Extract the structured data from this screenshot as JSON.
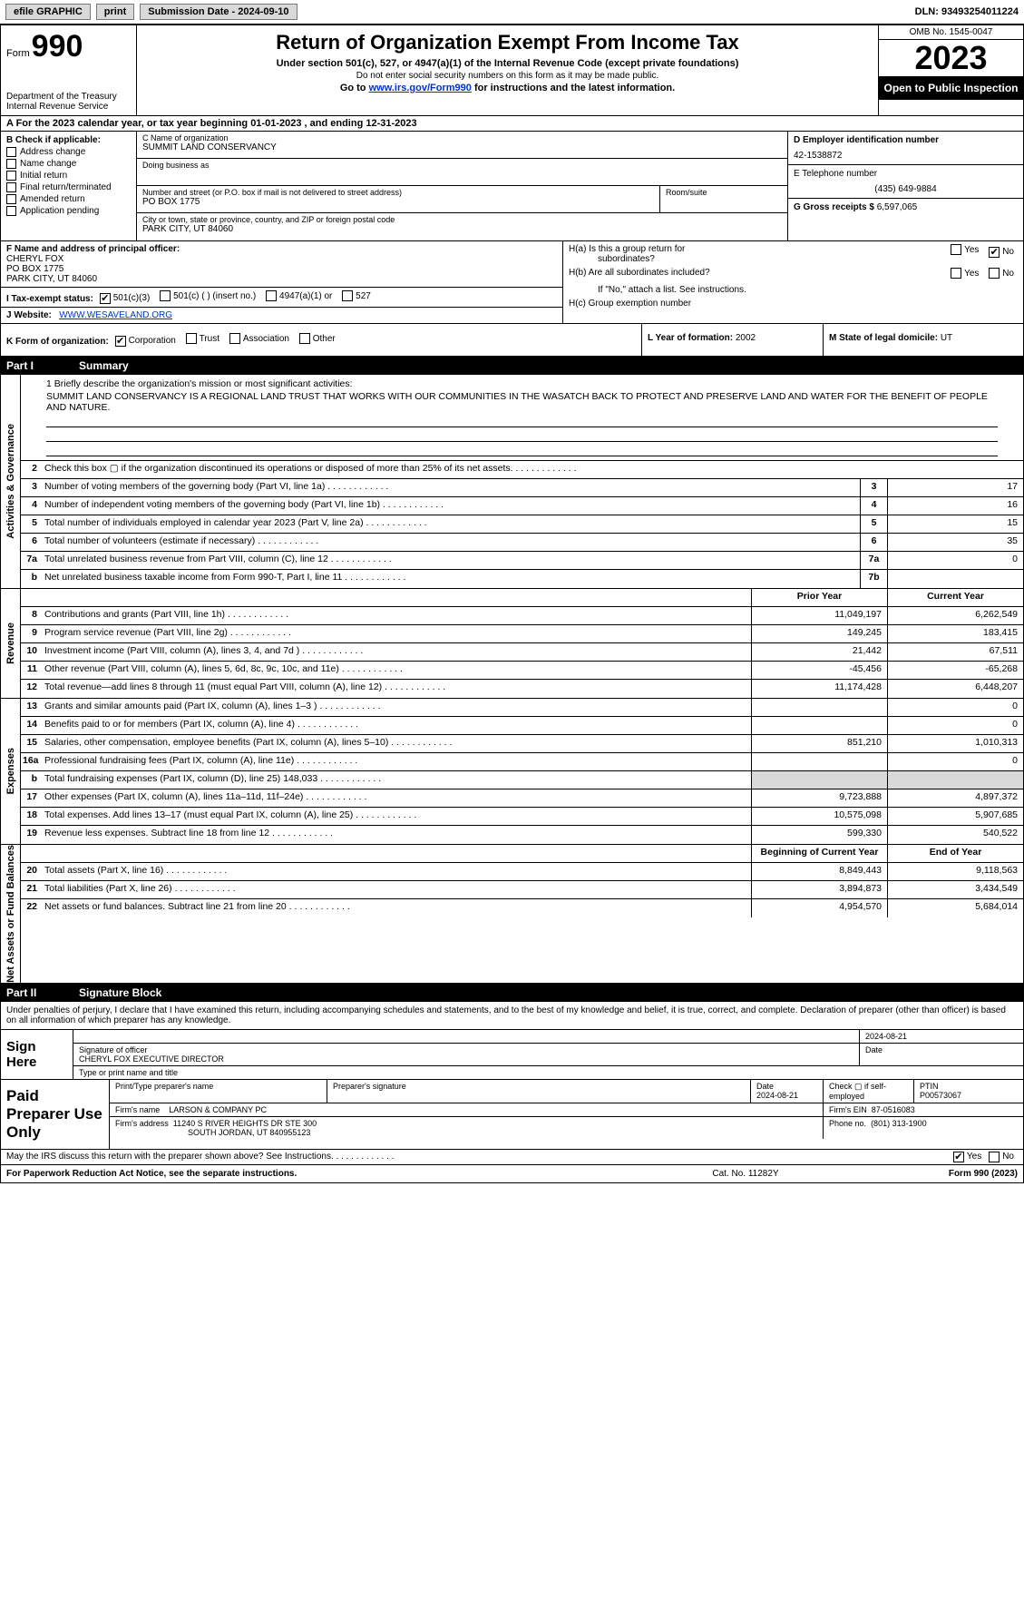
{
  "topbar": {
    "efile": "efile GRAPHIC",
    "print": "print",
    "sub_date_label": "Submission Date - 2024-09-10",
    "dln": "DLN: 93493254011224"
  },
  "header": {
    "form_label": "Form",
    "form_number": "990",
    "dept1": "Department of the Treasury",
    "dept2": "Internal Revenue Service",
    "title": "Return of Organization Exempt From Income Tax",
    "sub1": "Under section 501(c), 527, or 4947(a)(1) of the Internal Revenue Code (except private foundations)",
    "sub2": "Do not enter social security numbers on this form as it may be made public.",
    "sub3_pre": "Go to ",
    "sub3_link": "www.irs.gov/Form990",
    "sub3_post": " for instructions and the latest information.",
    "omb": "OMB No. 1545-0047",
    "year": "2023",
    "inspect": "Open to Public Inspection"
  },
  "row_a": "A For the 2023 calendar year, or tax year beginning 01-01-2023   , and ending 12-31-2023",
  "box_b": {
    "label": "B Check if applicable:",
    "opts": [
      "Address change",
      "Name change",
      "Initial return",
      "Final return/terminated",
      "Amended return",
      "Application pending"
    ]
  },
  "box_c": {
    "name_lbl": "C Name of organization",
    "name": "SUMMIT LAND CONSERVANCY",
    "dba_lbl": "Doing business as",
    "dba": "",
    "street_lbl": "Number and street (or P.O. box if mail is not delivered to street address)",
    "street": "PO BOX 1775",
    "suite_lbl": "Room/suite",
    "suite": "",
    "city_lbl": "City or town, state or province, country, and ZIP or foreign postal code",
    "city": "PARK CITY, UT  84060"
  },
  "box_d": {
    "ein_lbl": "D Employer identification number",
    "ein": "42-1538872",
    "tel_lbl": "E Telephone number",
    "tel": "(435) 649-9884",
    "gross_lbl": "G Gross receipts $",
    "gross": "6,597,065"
  },
  "box_f": {
    "lbl": "F Name and address of principal officer:",
    "l1": "CHERYL FOX",
    "l2": "PO BOX 1775",
    "l3": "PARK CITY, UT  84060"
  },
  "box_i": {
    "lbl": "I   Tax-exempt status:",
    "a": "501(c)(3)",
    "b": "501(c) (  ) (insert no.)",
    "c": "4947(a)(1) or",
    "d": "527"
  },
  "box_j": {
    "lbl": "J   Website:",
    "val": "WWW.WESAVELAND.ORG"
  },
  "box_h": {
    "ha1": "H(a)  Is this a group return for",
    "ha2": "subordinates?",
    "hb": "H(b)  Are all subordinates included?",
    "hb2": "If \"No,\" attach a list. See instructions.",
    "hc": "H(c)  Group exemption number",
    "yes": "Yes",
    "no": "No"
  },
  "box_k": {
    "lbl": "K Form of organization:",
    "opts": [
      "Corporation",
      "Trust",
      "Association",
      "Other"
    ]
  },
  "box_l": {
    "lbl": "L Year of formation:",
    "val": "2002"
  },
  "box_m": {
    "lbl": "M State of legal domicile:",
    "val": "UT"
  },
  "part1": {
    "pt": "Part I",
    "ttl": "Summary"
  },
  "mission": {
    "lbl": "1   Briefly describe the organization's mission or most significant activities:",
    "txt": "SUMMIT LAND CONSERVANCY IS A REGIONAL LAND TRUST THAT WORKS WITH OUR COMMUNITIES IN THE WASATCH BACK TO PROTECT AND PRESERVE LAND AND WATER FOR THE BENEFIT OF PEOPLE AND NATURE."
  },
  "gov_lines": [
    {
      "n": "2",
      "d": "Check this box ▢ if the organization discontinued its operations or disposed of more than 25% of its net assets.",
      "ln": "",
      "v": ""
    },
    {
      "n": "3",
      "d": "Number of voting members of the governing body (Part VI, line 1a)",
      "ln": "3",
      "v": "17"
    },
    {
      "n": "4",
      "d": "Number of independent voting members of the governing body (Part VI, line 1b)",
      "ln": "4",
      "v": "16"
    },
    {
      "n": "5",
      "d": "Total number of individuals employed in calendar year 2023 (Part V, line 2a)",
      "ln": "5",
      "v": "15"
    },
    {
      "n": "6",
      "d": "Total number of volunteers (estimate if necessary)",
      "ln": "6",
      "v": "35"
    },
    {
      "n": "7a",
      "d": "Total unrelated business revenue from Part VIII, column (C), line 12",
      "ln": "7a",
      "v": "0"
    },
    {
      "n": "b",
      "d": "Net unrelated business taxable income from Form 990-T, Part I, line 11",
      "ln": "7b",
      "v": ""
    }
  ],
  "col_hdr": {
    "py": "Prior Year",
    "cy": "Current Year"
  },
  "rev_lines": [
    {
      "n": "8",
      "d": "Contributions and grants (Part VIII, line 1h)",
      "py": "11,049,197",
      "cy": "6,262,549"
    },
    {
      "n": "9",
      "d": "Program service revenue (Part VIII, line 2g)",
      "py": "149,245",
      "cy": "183,415"
    },
    {
      "n": "10",
      "d": "Investment income (Part VIII, column (A), lines 3, 4, and 7d )",
      "py": "21,442",
      "cy": "67,511"
    },
    {
      "n": "11",
      "d": "Other revenue (Part VIII, column (A), lines 5, 6d, 8c, 9c, 10c, and 11e)",
      "py": "-45,456",
      "cy": "-65,268"
    },
    {
      "n": "12",
      "d": "Total revenue—add lines 8 through 11 (must equal Part VIII, column (A), line 12)",
      "py": "11,174,428",
      "cy": "6,448,207"
    }
  ],
  "exp_lines": [
    {
      "n": "13",
      "d": "Grants and similar amounts paid (Part IX, column (A), lines 1–3 )",
      "py": "",
      "cy": "0"
    },
    {
      "n": "14",
      "d": "Benefits paid to or for members (Part IX, column (A), line 4)",
      "py": "",
      "cy": "0"
    },
    {
      "n": "15",
      "d": "Salaries, other compensation, employee benefits (Part IX, column (A), lines 5–10)",
      "py": "851,210",
      "cy": "1,010,313"
    },
    {
      "n": "16a",
      "d": "Professional fundraising fees (Part IX, column (A), line 11e)",
      "py": "",
      "cy": "0"
    },
    {
      "n": "b",
      "d": "Total fundraising expenses (Part IX, column (D), line 25) 148,033",
      "py": "shade",
      "cy": "shade"
    },
    {
      "n": "17",
      "d": "Other expenses (Part IX, column (A), lines 11a–11d, 11f–24e)",
      "py": "9,723,888",
      "cy": "4,897,372"
    },
    {
      "n": "18",
      "d": "Total expenses. Add lines 13–17 (must equal Part IX, column (A), line 25)",
      "py": "10,575,098",
      "cy": "5,907,685"
    },
    {
      "n": "19",
      "d": "Revenue less expenses. Subtract line 18 from line 12",
      "py": "599,330",
      "cy": "540,522"
    }
  ],
  "na_hdr": {
    "py": "Beginning of Current Year",
    "cy": "End of Year"
  },
  "na_lines": [
    {
      "n": "20",
      "d": "Total assets (Part X, line 16)",
      "py": "8,849,443",
      "cy": "9,118,563"
    },
    {
      "n": "21",
      "d": "Total liabilities (Part X, line 26)",
      "py": "3,894,873",
      "cy": "3,434,549"
    },
    {
      "n": "22",
      "d": "Net assets or fund balances. Subtract line 21 from line 20",
      "py": "4,954,570",
      "cy": "5,684,014"
    }
  ],
  "tabs": {
    "gov": "Activities & Governance",
    "rev": "Revenue",
    "exp": "Expenses",
    "na": "Net Assets or Fund Balances"
  },
  "part2": {
    "pt": "Part II",
    "ttl": "Signature Block"
  },
  "sig_intro": "Under penalties of perjury, I declare that I have examined this return, including accompanying schedules and statements, and to the best of my knowledge and belief, it is true, correct, and complete. Declaration of preparer (other than officer) is based on all information of which preparer has any knowledge.",
  "sign": {
    "here": "Sign Here",
    "sig_date": "2024-08-21",
    "sig_lbl": "Signature of officer",
    "officer": "CHERYL FOX  EXECUTIVE DIRECTOR",
    "type_lbl": "Type or print name and title",
    "date_lbl": "Date"
  },
  "paid": {
    "lbl": "Paid Preparer Use Only",
    "name_lbl": "Print/Type preparer's name",
    "name": "",
    "psig_lbl": "Preparer's signature",
    "pdate_lbl": "Date",
    "pdate": "2024-08-21",
    "self_lbl": "Check ▢ if self-employed",
    "ptin_lbl": "PTIN",
    "ptin": "P00573067",
    "firm_name_lbl": "Firm's name",
    "firm_name": "LARSON & COMPANY PC",
    "firm_ein_lbl": "Firm's EIN",
    "firm_ein": "87-0516083",
    "firm_addr_lbl": "Firm's address",
    "firm_addr1": "11240 S RIVER HEIGHTS DR STE 300",
    "firm_addr2": "SOUTH JORDAN, UT  840955123",
    "phone_lbl": "Phone no.",
    "phone": "(801) 313-1900"
  },
  "discuss": {
    "q": "May the IRS discuss this return with the preparer shown above? See Instructions.",
    "yes": "Yes",
    "no": "No"
  },
  "footer": {
    "l": "For Paperwork Reduction Act Notice, see the separate instructions.",
    "c": "Cat. No. 11282Y",
    "r": "Form 990 (2023)"
  }
}
